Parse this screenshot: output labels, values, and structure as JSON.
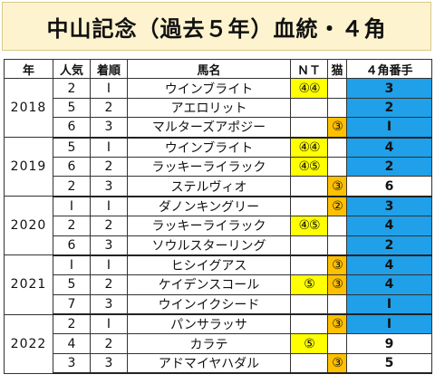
{
  "title": "中山記念（過去５年）血統・４角",
  "headers": {
    "year": "年",
    "popularity": "人気",
    "finish": "着順",
    "horse": "馬名",
    "nt": "ＮＴ",
    "neko": "猫",
    "corner": "４角番手"
  },
  "colors": {
    "nt_highlight": "#ffff00",
    "neko_highlight": "#ffc000",
    "corner_highlight": "#1fa0e8",
    "title_bg": "#fdf3cf"
  },
  "years": [
    {
      "year": "2018",
      "rows": [
        {
          "pop": "2",
          "finish": "Ⅰ",
          "horse": "ウインブライト",
          "nt": "④④",
          "neko": "",
          "corner": "3",
          "corner_hi": true
        },
        {
          "pop": "5",
          "finish": "2",
          "horse": "アエロリット",
          "nt": "",
          "neko": "",
          "corner": "2",
          "corner_hi": true
        },
        {
          "pop": "6",
          "finish": "3",
          "horse": "マルターズアポジー",
          "nt": "",
          "neko": "③",
          "corner": "Ⅰ",
          "corner_hi": true
        }
      ]
    },
    {
      "year": "2019",
      "rows": [
        {
          "pop": "5",
          "finish": "Ⅰ",
          "horse": "ウインブライト",
          "nt": "④④",
          "neko": "",
          "corner": "4",
          "corner_hi": true
        },
        {
          "pop": "6",
          "finish": "2",
          "horse": "ラッキーライラック",
          "nt": "④⑤",
          "neko": "",
          "corner": "2",
          "corner_hi": true
        },
        {
          "pop": "2",
          "finish": "3",
          "horse": "ステルヴィオ",
          "nt": "",
          "neko": "③",
          "corner": "6",
          "corner_hi": false
        }
      ]
    },
    {
      "year": "2020",
      "rows": [
        {
          "pop": "Ⅰ",
          "finish": "Ⅰ",
          "horse": "ダノンキングリー",
          "nt": "",
          "neko": "②",
          "corner": "3",
          "corner_hi": true
        },
        {
          "pop": "2",
          "finish": "2",
          "horse": "ラッキーライラック",
          "nt": "④⑤",
          "neko": "",
          "corner": "4",
          "corner_hi": true
        },
        {
          "pop": "6",
          "finish": "3",
          "horse": "ソウルスターリング",
          "nt": "",
          "neko": "",
          "corner": "2",
          "corner_hi": true
        }
      ]
    },
    {
      "year": "2021",
      "rows": [
        {
          "pop": "Ⅰ",
          "finish": "Ⅰ",
          "horse": "ヒシイグアス",
          "nt": "",
          "neko": "③",
          "corner": "4",
          "corner_hi": true
        },
        {
          "pop": "5",
          "finish": "2",
          "horse": "ケイデンスコール",
          "nt": "⑤",
          "neko": "③",
          "corner": "4",
          "corner_hi": true
        },
        {
          "pop": "7",
          "finish": "3",
          "horse": "ウインイクシード",
          "nt": "",
          "neko": "",
          "corner": "Ⅰ",
          "corner_hi": true
        }
      ]
    },
    {
      "year": "2022",
      "rows": [
        {
          "pop": "2",
          "finish": "Ⅰ",
          "horse": "パンサラッサ",
          "nt": "",
          "neko": "③",
          "corner": "Ⅰ",
          "corner_hi": true
        },
        {
          "pop": "4",
          "finish": "2",
          "horse": "カラテ",
          "nt": "⑤",
          "neko": "",
          "corner": "9",
          "corner_hi": false
        },
        {
          "pop": "3",
          "finish": "3",
          "horse": "アドマイヤハダル",
          "nt": "",
          "neko": "③",
          "corner": "5",
          "corner_hi": false
        }
      ]
    }
  ]
}
